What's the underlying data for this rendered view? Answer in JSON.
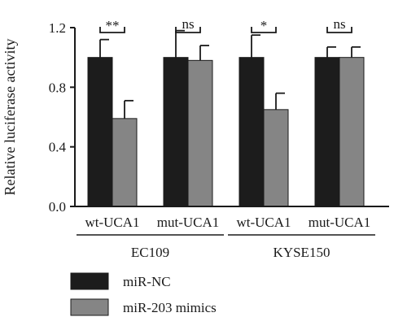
{
  "chart_data": {
    "type": "bar",
    "ylabel": "Relative luciferase activity",
    "ylim": [
      0,
      1.2
    ],
    "yticks": [
      "0.0",
      "0.4",
      "0.8",
      "1.2"
    ],
    "categories": [
      "wt-UCA1",
      "mut-UCA1",
      "wt-UCA1",
      "mut-UCA1"
    ],
    "groups": [
      {
        "label": "EC109",
        "categories": [
          0,
          1
        ]
      },
      {
        "label": "KYSE150",
        "categories": [
          2,
          3
        ]
      }
    ],
    "series": [
      {
        "name": "miR-NC",
        "color": "#1c1c1c",
        "values": [
          1.0,
          1.0,
          1.0,
          1.0
        ],
        "errors": [
          0.12,
          0.18,
          0.15,
          0.07
        ]
      },
      {
        "name": "miR-203 mimics",
        "color": "#858585",
        "values": [
          0.59,
          0.98,
          0.65,
          1.0
        ],
        "errors": [
          0.12,
          0.1,
          0.11,
          0.07
        ]
      }
    ],
    "significance": [
      "**",
      "ns",
      "*",
      "ns"
    ],
    "legend_position": "bottom-left"
  }
}
